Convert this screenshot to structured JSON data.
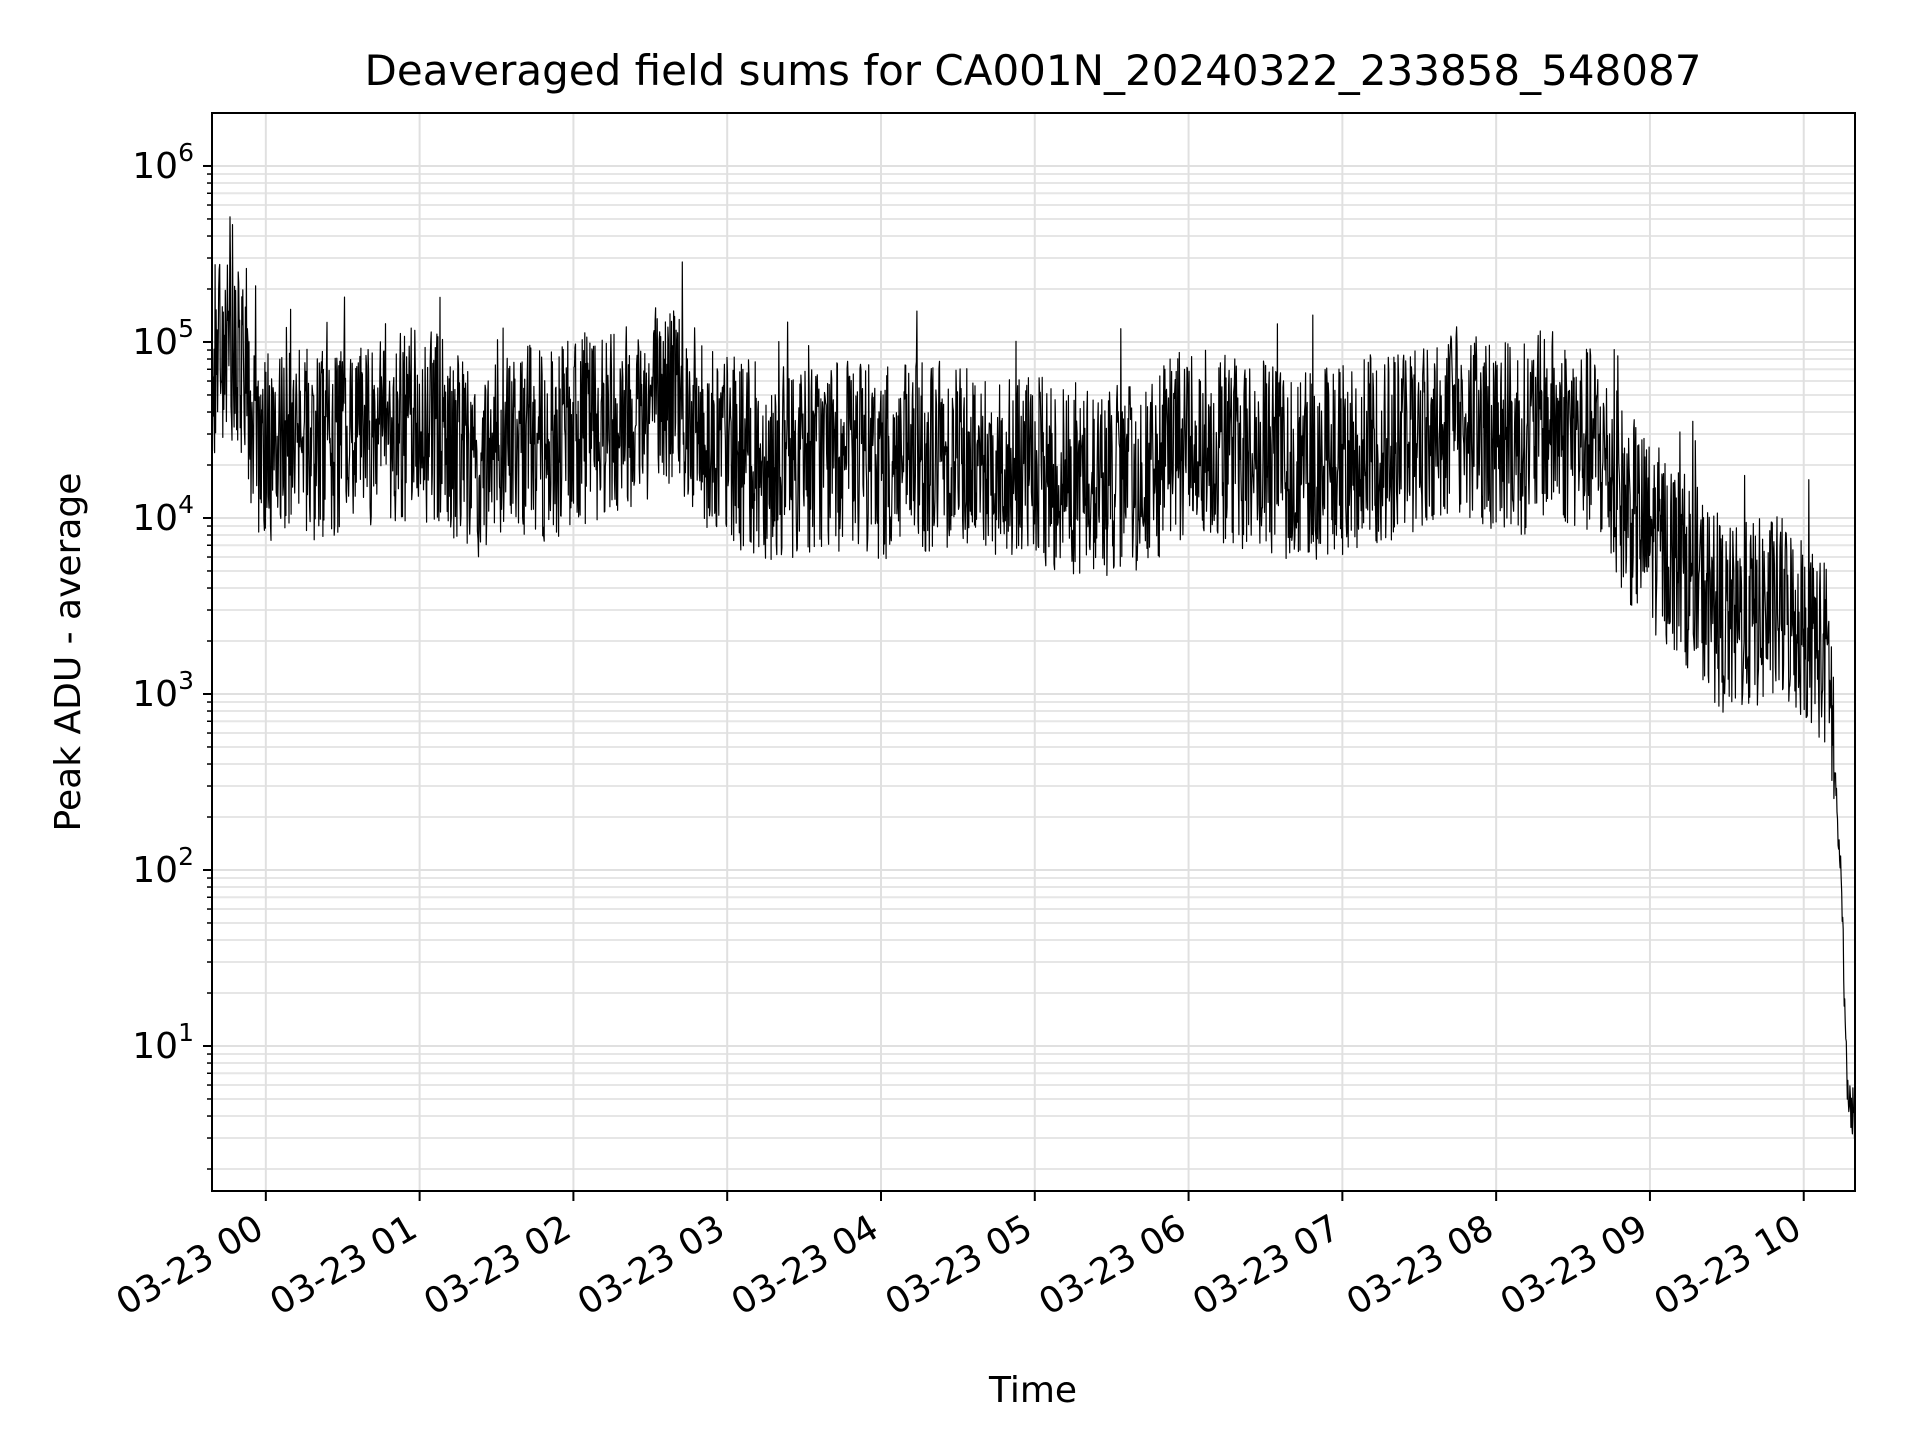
{
  "chart_data": {
    "type": "line",
    "title": "Deaveraged field sums for CA001N_20240322_233858_548087",
    "xlabel": "Time",
    "ylabel": "Peak ADU - average",
    "yscale": "log",
    "ylim": [
      1.5,
      2000000
    ],
    "xlim": [
      "03-22 23:39",
      "03-23 10:20"
    ],
    "grid": true,
    "line_color": "#000000",
    "x_ticks": [
      "03-23 00",
      "03-23 01",
      "03-23 02",
      "03-23 03",
      "03-23 04",
      "03-23 05",
      "03-23 06",
      "03-23 07",
      "03-23 08",
      "03-23 09",
      "03-23 10"
    ],
    "y_ticks": [
      {
        "base": "10",
        "exp": "1",
        "value": 10
      },
      {
        "base": "10",
        "exp": "2",
        "value": 100
      },
      {
        "base": "10",
        "exp": "3",
        "value": 1000
      },
      {
        "base": "10",
        "exp": "4",
        "value": 10000
      },
      {
        "base": "10",
        "exp": "5",
        "value": 100000
      },
      {
        "base": "10",
        "exp": "6",
        "value": 1000000
      }
    ],
    "series": [
      {
        "x": [
          "03-22 23:39",
          "03-22 23:45",
          "03-22 23:50",
          "03-22 23:52",
          "03-22 23:55",
          "03-23 00:00",
          "03-23 00:10",
          "03-23 00:20",
          "03-23 00:30",
          "03-23 00:40",
          "03-23 00:50",
          "03-23 01:00",
          "03-23 01:10",
          "03-23 01:20",
          "03-23 01:30",
          "03-23 01:40",
          "03-23 01:50",
          "03-23 02:00",
          "03-23 02:10",
          "03-23 02:20",
          "03-23 02:30",
          "03-23 02:40",
          "03-23 02:50",
          "03-23 03:00",
          "03-23 03:10",
          "03-23 03:20",
          "03-23 03:30",
          "03-23 03:40",
          "03-23 03:50",
          "03-23 04:00",
          "03-23 04:15",
          "03-23 04:30",
          "03-23 04:45",
          "03-23 05:00",
          "03-23 05:15",
          "03-23 05:30",
          "03-23 05:45",
          "03-23 06:00",
          "03-23 06:15",
          "03-23 06:30",
          "03-23 06:45",
          "03-23 07:00",
          "03-23 07:15",
          "03-23 07:30",
          "03-23 07:45",
          "03-23 08:00",
          "03-23 08:10",
          "03-23 08:20",
          "03-23 08:30",
          "03-23 08:40",
          "03-23 08:50",
          "03-23 09:00",
          "03-23 09:10",
          "03-23 09:20",
          "03-23 09:30",
          "03-23 09:40",
          "03-23 09:50",
          "03-23 10:00",
          "03-23 10:05",
          "03-23 10:10",
          "03-23 10:12",
          "03-23 10:15",
          "03-23 10:17",
          "03-23 10:20"
        ],
        "y": [
          80000,
          85000,
          70000,
          50000,
          30000,
          25000,
          30000,
          25000,
          28000,
          30000,
          32000,
          35000,
          30000,
          20000,
          25000,
          28000,
          25000,
          30000,
          35000,
          40000,
          45000,
          50000,
          30000,
          25000,
          22000,
          20000,
          22000,
          23000,
          22000,
          20000,
          22000,
          25000,
          20000,
          18000,
          17000,
          16000,
          17000,
          30000,
          25000,
          22000,
          20000,
          22000,
          25000,
          30000,
          35000,
          30000,
          28000,
          35000,
          30000,
          25000,
          12000,
          8000,
          6000,
          4000,
          2500,
          2800,
          3000,
          2500,
          2000,
          1500,
          400,
          60,
          5,
          4
        ]
      }
    ]
  }
}
